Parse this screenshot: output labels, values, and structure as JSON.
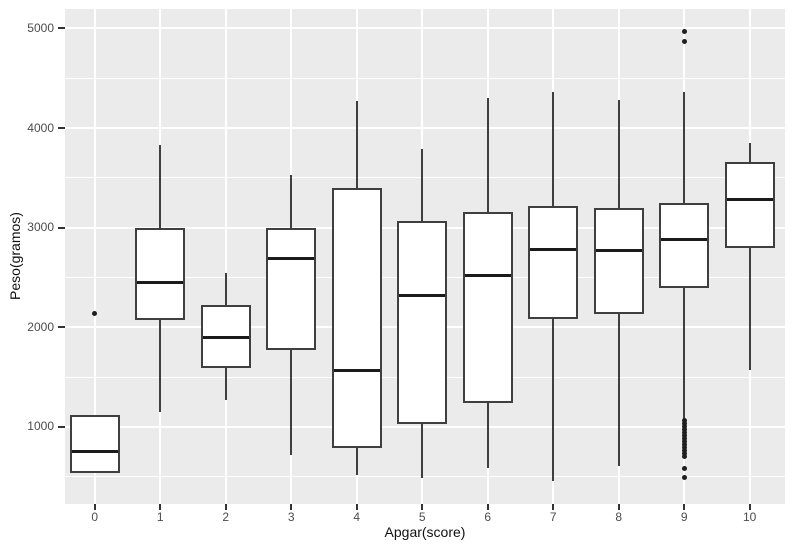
{
  "chart_data": {
    "type": "boxplot",
    "title": "",
    "xlabel": "Apgar(score)",
    "ylabel": "Peso(gramos)",
    "ylim": [
      225,
      5195
    ],
    "y_major_ticks": [
      1000,
      2000,
      3000,
      4000,
      5000
    ],
    "y_minor_gridlines": [
      500,
      1500,
      2500,
      3500,
      4500
    ],
    "grid": "on",
    "legend": "none",
    "categories": [
      "0",
      "1",
      "2",
      "3",
      "4",
      "5",
      "6",
      "7",
      "8",
      "9",
      "10"
    ],
    "boxes": [
      {
        "category": "0",
        "whisker_low": 540,
        "q1": 540,
        "median": 750,
        "q3": 1120,
        "whisker_high": 1120,
        "outliers": [
          2140
        ]
      },
      {
        "category": "1",
        "whisker_low": 1150,
        "q1": 2070,
        "median": 2450,
        "q3": 3000,
        "whisker_high": 3830,
        "outliers": []
      },
      {
        "category": "2",
        "whisker_low": 1270,
        "q1": 1590,
        "median": 1900,
        "q3": 2220,
        "whisker_high": 2540,
        "outliers": []
      },
      {
        "category": "3",
        "whisker_low": 715,
        "q1": 1775,
        "median": 2690,
        "q3": 3000,
        "whisker_high": 3530,
        "outliers": []
      },
      {
        "category": "4",
        "whisker_low": 515,
        "q1": 790,
        "median": 1570,
        "q3": 3400,
        "whisker_high": 4270,
        "outliers": []
      },
      {
        "category": "5",
        "whisker_low": 485,
        "q1": 1030,
        "median": 2320,
        "q3": 3070,
        "whisker_high": 3790,
        "outliers": []
      },
      {
        "category": "6",
        "whisker_low": 585,
        "q1": 1240,
        "median": 2520,
        "q3": 3160,
        "whisker_high": 4300,
        "outliers": []
      },
      {
        "category": "7",
        "whisker_low": 455,
        "q1": 2080,
        "median": 2780,
        "q3": 3220,
        "whisker_high": 4360,
        "outliers": []
      },
      {
        "category": "8",
        "whisker_low": 610,
        "q1": 2130,
        "median": 2770,
        "q3": 3200,
        "whisker_high": 4280,
        "outliers": []
      },
      {
        "category": "9",
        "whisker_low": 1080,
        "q1": 2390,
        "median": 2880,
        "q3": 3250,
        "whisker_high": 4360,
        "outliers": [
          4970,
          4870,
          1060,
          1030,
          1000,
          970,
          940,
          910,
          880,
          850,
          820,
          790,
          760,
          730,
          700,
          580,
          490
        ]
      },
      {
        "category": "10",
        "whisker_low": 1570,
        "q1": 2800,
        "median": 3280,
        "q3": 3660,
        "whisker_high": 3850,
        "outliers": []
      }
    ],
    "colors": {
      "panel_background": "#ebebeb",
      "gridline": "#ffffff",
      "box_fill": "#ffffff",
      "box_border": "#3f3f3f",
      "median_line": "#1b1b1b",
      "outlier_point": "#1f1f1f",
      "tick_text": "#4c4c4c",
      "axis_title_text": "#111111",
      "figure_background": "#ffffff"
    }
  }
}
